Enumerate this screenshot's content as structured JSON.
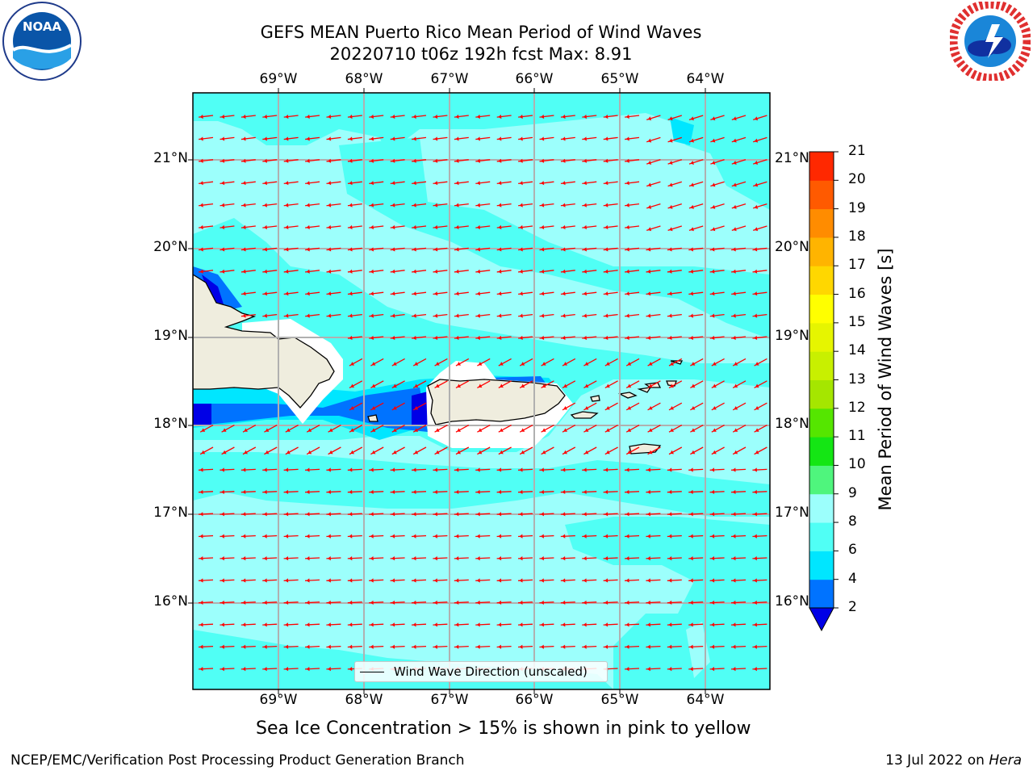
{
  "header": {
    "title_line1": "GEFS MEAN Puerto Rico Mean Period of Wind Waves",
    "title_line2": "20220710 t06z 192h fcst   Max: 8.91"
  },
  "logos": {
    "left": {
      "name": "NOAA",
      "text": "NOAA"
    },
    "right": {
      "name": "National Weather Service"
    }
  },
  "map": {
    "lon_labels": [
      "69°W",
      "68°W",
      "67°W",
      "66°W",
      "65°W",
      "64°W"
    ],
    "lat_labels": [
      "21°N",
      "20°N",
      "19°N",
      "18°N",
      "17°N",
      "16°N"
    ],
    "lat_labels_right": [
      "21°N",
      "20°N",
      "19°N",
      "18°N",
      "17°N",
      "16°N"
    ],
    "ocean_color": "#9cfffc",
    "land_color": "#efedde",
    "arrow_color": "#ff0000",
    "grid_color": "#b0b0b0"
  },
  "legend": {
    "label": "Wind Wave Direction (unscaled)"
  },
  "colorbar": {
    "label": "Mean Period of Wind Waves [s]",
    "ticks": [
      "2",
      "4",
      "6",
      "8",
      "9",
      "10",
      "11",
      "12",
      "13",
      "14",
      "15",
      "16",
      "17",
      "18",
      "19",
      "20",
      "21"
    ],
    "colors": [
      "#0073ff",
      "#00e6ff",
      "#50fff5",
      "#9cfffc",
      "#4ff57d",
      "#14e614",
      "#55e600",
      "#a5e600",
      "#c8f000",
      "#e6f500",
      "#ffff00",
      "#ffd700",
      "#ffb400",
      "#ff8c00",
      "#ff5a00",
      "#ff2800",
      "#ff0000"
    ],
    "under_color": "#0000e6"
  },
  "footer": {
    "sea_ice_note": "Sea Ice Concentration > 15% is shown in pink to yellow",
    "branch": "NCEP/EMC/Verification Post Processing Product Generation Branch",
    "date_prefix": "13 Jul 2022 on ",
    "machine": "Hera"
  }
}
